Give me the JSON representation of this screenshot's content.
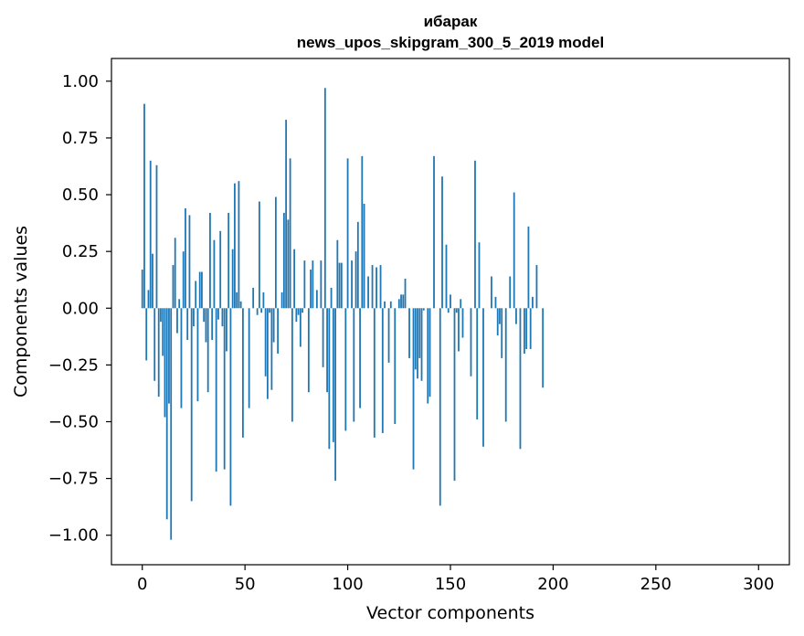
{
  "chart_data": {
    "type": "bar",
    "title": "ибарак",
    "subtitle": "news_upos_skipgram_300_5_2019 model",
    "xlabel": "Vector components",
    "ylabel": "Components values",
    "xlim": [
      -15,
      315
    ],
    "ylim": [
      -1.13,
      1.1
    ],
    "xticks": [
      0,
      50,
      100,
      150,
      200,
      250,
      300
    ],
    "xtick_labels": [
      "0",
      "50",
      "100",
      "150",
      "200",
      "250",
      "300"
    ],
    "yticks": [
      1.0,
      0.75,
      0.5,
      0.25,
      0.0,
      -0.25,
      -0.5,
      -0.75,
      -1.0
    ],
    "ytick_labels": [
      "1.00",
      "0.75",
      "0.50",
      "0.25",
      "0.00",
      "−0.25",
      "−0.50",
      "−0.75",
      "−1.00"
    ],
    "grid": false,
    "legend": "none",
    "bar_color": "#1f77b4",
    "values": [
      0.17,
      0.9,
      -0.23,
      0.08,
      0.65,
      0.24,
      -0.32,
      0.63,
      -0.39,
      -0.06,
      -0.21,
      -0.48,
      -0.93,
      -0.42,
      -1.02,
      0.19,
      0.31,
      -0.11,
      0.04,
      -0.44,
      0.25,
      0.44,
      -0.14,
      0.41,
      -0.85,
      -0.08,
      0.12,
      -0.41,
      0.16,
      0.16,
      -0.06,
      -0.15,
      -0.37,
      0.42,
      -0.14,
      0.3,
      -0.72,
      -0.05,
      0.34,
      -0.08,
      -0.71,
      -0.19,
      0.42,
      -0.87,
      0.26,
      0.55,
      0.07,
      0.56,
      0.03,
      -0.57,
      0.0,
      0.0,
      -0.44,
      0.0,
      0.09,
      0.0,
      -0.03,
      0.47,
      -0.02,
      0.07,
      -0.3,
      -0.4,
      -0.02,
      -0.36,
      -0.15,
      0.49,
      -0.2,
      0.0,
      0.07,
      0.42,
      0.83,
      0.39,
      0.66,
      -0.5,
      0.26,
      -0.06,
      -0.03,
      -0.17,
      -0.02,
      0.21,
      0.0,
      -0.37,
      0.17,
      0.21,
      0.0,
      0.08,
      0.0,
      0.21,
      -0.26,
      0.97,
      -0.37,
      -0.62,
      0.09,
      -0.59,
      -0.76,
      0.3,
      0.2,
      0.2,
      0.0,
      -0.54,
      0.66,
      0.0,
      0.21,
      -0.5,
      0.25,
      0.38,
      -0.44,
      0.67,
      0.46,
      0.0,
      0.14,
      0.0,
      0.19,
      -0.57,
      0.18,
      0.0,
      0.19,
      -0.55,
      0.03,
      0.0,
      -0.24,
      0.03,
      0.0,
      -0.51,
      0.0,
      0.04,
      0.06,
      0.06,
      0.13,
      0.0,
      -0.22,
      0.0,
      -0.71,
      -0.27,
      -0.31,
      -0.22,
      -0.32,
      -0.01,
      0.0,
      -0.42,
      -0.39,
      0.0,
      0.67,
      0.0,
      0.0,
      -0.87,
      0.58,
      0.0,
      0.28,
      -0.02,
      0.06,
      0.0,
      -0.76,
      -0.02,
      -0.19,
      0.04,
      -0.13,
      0.0,
      0.0,
      0.0,
      -0.3,
      0.0,
      0.65,
      -0.49,
      0.29,
      0.0,
      -0.61,
      0.0,
      0.0,
      0.0,
      0.14,
      0.0,
      0.05,
      -0.12,
      -0.07,
      -0.22,
      0.0,
      -0.5,
      0.0,
      0.14,
      0.0,
      0.51,
      -0.07,
      0.0,
      -0.62,
      0.0,
      -0.2,
      -0.18,
      0.36,
      -0.18,
      0.05,
      0.0,
      0.19,
      0.0,
      0.0,
      -0.35,
      0.0,
      0.0,
      0.0,
      0.0
    ]
  }
}
